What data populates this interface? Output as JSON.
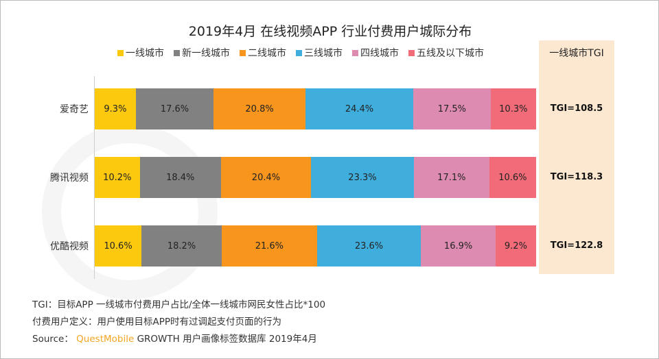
{
  "title": "2019年4月 在线视频APP 行业付费用户城际分布",
  "chart_data": {
    "type": "bar",
    "stacked": true,
    "orientation": "horizontal",
    "title": "2019年4月 在线视频APP 行业付费用户城际分布",
    "categories": [
      "爱奇艺",
      "腾讯视频",
      "优酷视频"
    ],
    "series": [
      {
        "name": "一线城市",
        "color": "#FDC90E",
        "values": [
          9.3,
          10.2,
          10.6
        ]
      },
      {
        "name": "新一线城市",
        "color": "#818181",
        "values": [
          17.6,
          18.4,
          18.2
        ]
      },
      {
        "name": "二线城市",
        "color": "#F7951D",
        "values": [
          20.8,
          20.4,
          21.6
        ]
      },
      {
        "name": "三线城市",
        "color": "#40AEDD",
        "values": [
          24.4,
          23.3,
          23.6
        ]
      },
      {
        "name": "四线城市",
        "color": "#DE8BB1",
        "values": [
          17.5,
          17.1,
          16.9
        ]
      },
      {
        "name": "五线及以下城市",
        "color": "#F26B78",
        "values": [
          10.3,
          10.6,
          9.2
        ]
      }
    ],
    "unit": "%",
    "legend": "top",
    "tgi": {
      "header": "一线城市TGI",
      "values": [
        "TGI=108.5",
        "TGI=118.3",
        "TGI=122.8"
      ]
    }
  },
  "notes": {
    "tgi_def": "TGI：目标APP 一线城市付费用户占比/全体一线城市网民女性占比*100",
    "paid_def": "付费用户定义：用户使用目标APP时有过调起支付页面的行为",
    "source_prefix": "Source：",
    "source_brand": "QuestMobile",
    "source_rest": "GROWTH 用户画像标签数据库 2019年4月"
  }
}
